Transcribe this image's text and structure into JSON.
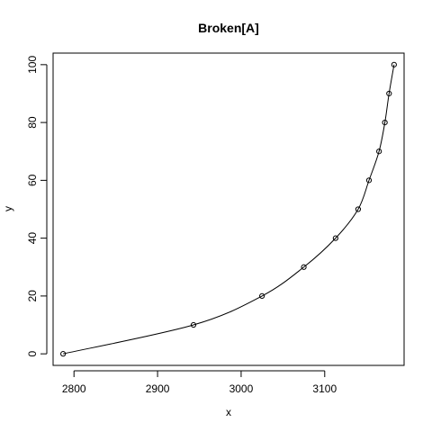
{
  "chart_data": {
    "type": "scatter",
    "title": "Broken[A]",
    "xlabel": "x",
    "ylabel": "y",
    "xlim": [
      2775,
      3195
    ],
    "ylim": [
      -4,
      104
    ],
    "x_ticks": [
      2800,
      2900,
      3000,
      3100
    ],
    "y_ticks": [
      0,
      20,
      40,
      60,
      80,
      100
    ],
    "x_tick_labels": [
      "2800",
      "2900",
      "3000",
      "3100"
    ],
    "y_tick_labels": [
      "0",
      "20",
      "40",
      "60",
      "80",
      "100"
    ],
    "grid": false,
    "legend": "none",
    "colors": {
      "points": "#000000",
      "line": "#000000",
      "frame": "#000000",
      "background": "#ffffff"
    },
    "points": [
      {
        "x": 2787,
        "y": 0
      },
      {
        "x": 2943,
        "y": 10
      },
      {
        "x": 3025,
        "y": 20
      },
      {
        "x": 3075,
        "y": 30
      },
      {
        "x": 3113,
        "y": 40
      },
      {
        "x": 3140,
        "y": 50
      },
      {
        "x": 3153,
        "y": 60
      },
      {
        "x": 3165,
        "y": 70
      },
      {
        "x": 3172,
        "y": 80
      },
      {
        "x": 3177,
        "y": 90
      },
      {
        "x": 3183,
        "y": 100
      }
    ]
  }
}
